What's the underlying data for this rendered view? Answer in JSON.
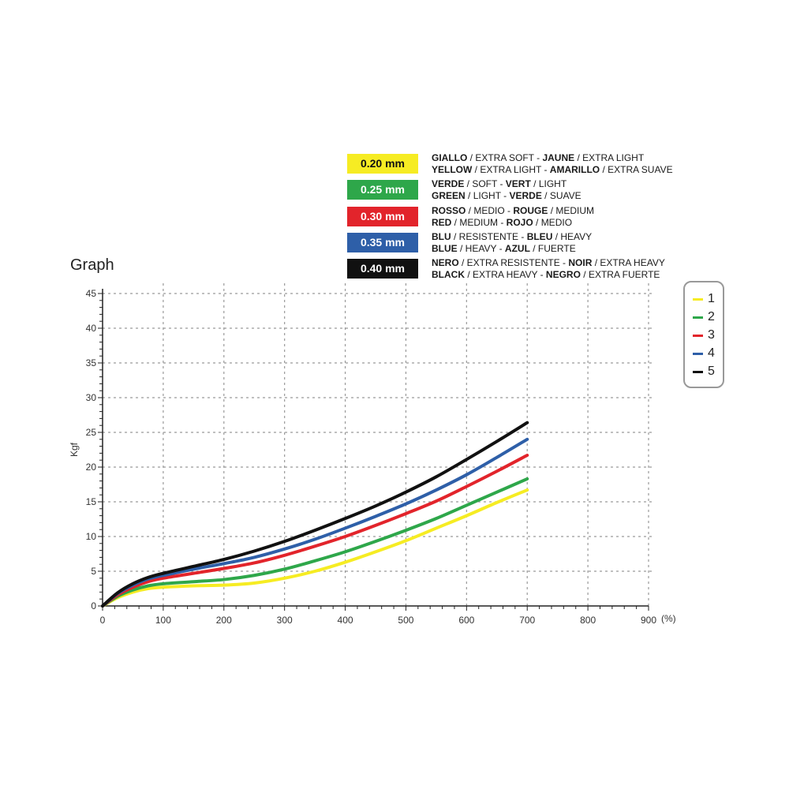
{
  "colors": {
    "yellow": "#f6ec23",
    "green": "#2ea74a",
    "red": "#e2242b",
    "blue": "#2e5fa8",
    "black": "#111111",
    "grid": "#9a9a9a",
    "axis": "#222222"
  },
  "thickness_table": [
    {
      "mm": "0.20 mm",
      "color": "#f6ec23",
      "text_color": "#111111",
      "line1": [
        {
          "t": "GIALLO",
          "b": true
        },
        {
          "t": " / EXTRA SOFT - ",
          "b": false
        },
        {
          "t": "JAUNE",
          "b": true
        },
        {
          "t": " / EXTRA LIGHT",
          "b": false
        }
      ],
      "line2": [
        {
          "t": "YELLOW",
          "b": true
        },
        {
          "t": " / EXTRA LIGHT - ",
          "b": false
        },
        {
          "t": "AMARILLO",
          "b": true
        },
        {
          "t": " / EXTRA SUAVE",
          "b": false
        }
      ]
    },
    {
      "mm": "0.25 mm",
      "color": "#2ea74a",
      "text_color": "#ffffff",
      "line1": [
        {
          "t": "VERDE",
          "b": true
        },
        {
          "t": " / SOFT - ",
          "b": false
        },
        {
          "t": "VERT",
          "b": true
        },
        {
          "t": " / LIGHT",
          "b": false
        }
      ],
      "line2": [
        {
          "t": "GREEN",
          "b": true
        },
        {
          "t": " / LIGHT - ",
          "b": false
        },
        {
          "t": "VERDE",
          "b": true
        },
        {
          "t": " / SUAVE",
          "b": false
        }
      ]
    },
    {
      "mm": "0.30 mm",
      "color": "#e2242b",
      "text_color": "#ffffff",
      "line1": [
        {
          "t": "ROSSO",
          "b": true
        },
        {
          "t": " / MEDIO - ",
          "b": false
        },
        {
          "t": "ROUGE",
          "b": true
        },
        {
          "t": " / MEDIUM",
          "b": false
        }
      ],
      "line2": [
        {
          "t": "RED",
          "b": true
        },
        {
          "t": " / MEDIUM - ",
          "b": false
        },
        {
          "t": "ROJO",
          "b": true
        },
        {
          "t": " / MEDIO",
          "b": false
        }
      ]
    },
    {
      "mm": "0.35 mm",
      "color": "#2e5fa8",
      "text_color": "#ffffff",
      "line1": [
        {
          "t": "BLU",
          "b": true
        },
        {
          "t": " / RESISTENTE - ",
          "b": false
        },
        {
          "t": "BLEU",
          "b": true
        },
        {
          "t": " / HEAVY",
          "b": false
        }
      ],
      "line2": [
        {
          "t": "BLUE",
          "b": true
        },
        {
          "t": " / HEAVY - ",
          "b": false
        },
        {
          "t": "AZUL",
          "b": true
        },
        {
          "t": " / FUERTE",
          "b": false
        }
      ]
    },
    {
      "mm": "0.40 mm",
      "color": "#111111",
      "text_color": "#ffffff",
      "line1": [
        {
          "t": "NERO",
          "b": true
        },
        {
          "t": " / EXTRA RESISTENTE - ",
          "b": false
        },
        {
          "t": "NOIR",
          "b": true
        },
        {
          "t": " / EXTRA HEAVY",
          "b": false
        }
      ],
      "line2": [
        {
          "t": "BLACK",
          "b": true
        },
        {
          "t": " / EXTRA HEAVY - ",
          "b": false
        },
        {
          "t": "NEGRO",
          "b": true
        },
        {
          "t": " / EXTRA FUERTE",
          "b": false
        }
      ]
    }
  ],
  "chart_data": {
    "type": "line",
    "title": "Graph",
    "xlabel": "",
    "x_unit": "(%)",
    "ylabel": "Kgf",
    "xlim": [
      0,
      900
    ],
    "ylim": [
      0,
      45
    ],
    "xticks": [
      0,
      100,
      200,
      300,
      400,
      500,
      600,
      700,
      800,
      900
    ],
    "yticks": [
      0,
      5,
      10,
      15,
      20,
      25,
      30,
      35,
      40,
      45
    ],
    "grid": true,
    "legend_placement": "right",
    "series": [
      {
        "name": "1",
        "color": "#f6ec23",
        "x": [
          0,
          25,
          50,
          75,
          100,
          150,
          200,
          250,
          300,
          350,
          400,
          450,
          500,
          550,
          600,
          650,
          700
        ],
        "y": [
          0,
          1.2,
          2.0,
          2.5,
          2.7,
          2.9,
          3.0,
          3.3,
          4.0,
          5.0,
          6.3,
          7.8,
          9.4,
          11.2,
          13.0,
          14.9,
          16.7
        ]
      },
      {
        "name": "2",
        "color": "#2ea74a",
        "x": [
          0,
          25,
          50,
          75,
          100,
          150,
          200,
          250,
          300,
          350,
          400,
          450,
          500,
          550,
          600,
          650,
          700
        ],
        "y": [
          0,
          1.4,
          2.3,
          2.9,
          3.2,
          3.5,
          3.8,
          4.4,
          5.3,
          6.5,
          7.8,
          9.3,
          10.9,
          12.6,
          14.5,
          16.4,
          18.3
        ]
      },
      {
        "name": "3",
        "color": "#e2242b",
        "x": [
          0,
          25,
          50,
          75,
          100,
          150,
          200,
          250,
          300,
          350,
          400,
          450,
          500,
          550,
          600,
          650,
          700
        ],
        "y": [
          0,
          1.6,
          2.7,
          3.5,
          4.0,
          4.7,
          5.4,
          6.2,
          7.3,
          8.6,
          10.0,
          11.6,
          13.3,
          15.1,
          17.2,
          19.4,
          21.7
        ]
      },
      {
        "name": "4",
        "color": "#2e5fa8",
        "x": [
          0,
          25,
          50,
          75,
          100,
          150,
          200,
          250,
          300,
          350,
          400,
          450,
          500,
          550,
          600,
          650,
          700
        ],
        "y": [
          0,
          1.8,
          3.0,
          3.9,
          4.4,
          5.3,
          6.1,
          7.0,
          8.2,
          9.6,
          11.2,
          12.9,
          14.7,
          16.7,
          18.9,
          21.4,
          24.0
        ]
      },
      {
        "name": "5",
        "color": "#111111",
        "x": [
          0,
          25,
          50,
          75,
          100,
          150,
          200,
          250,
          300,
          350,
          400,
          450,
          500,
          550,
          600,
          650,
          700
        ],
        "y": [
          0,
          1.9,
          3.2,
          4.1,
          4.7,
          5.7,
          6.7,
          7.9,
          9.3,
          10.9,
          12.6,
          14.4,
          16.4,
          18.6,
          21.1,
          23.7,
          26.4
        ]
      }
    ]
  }
}
